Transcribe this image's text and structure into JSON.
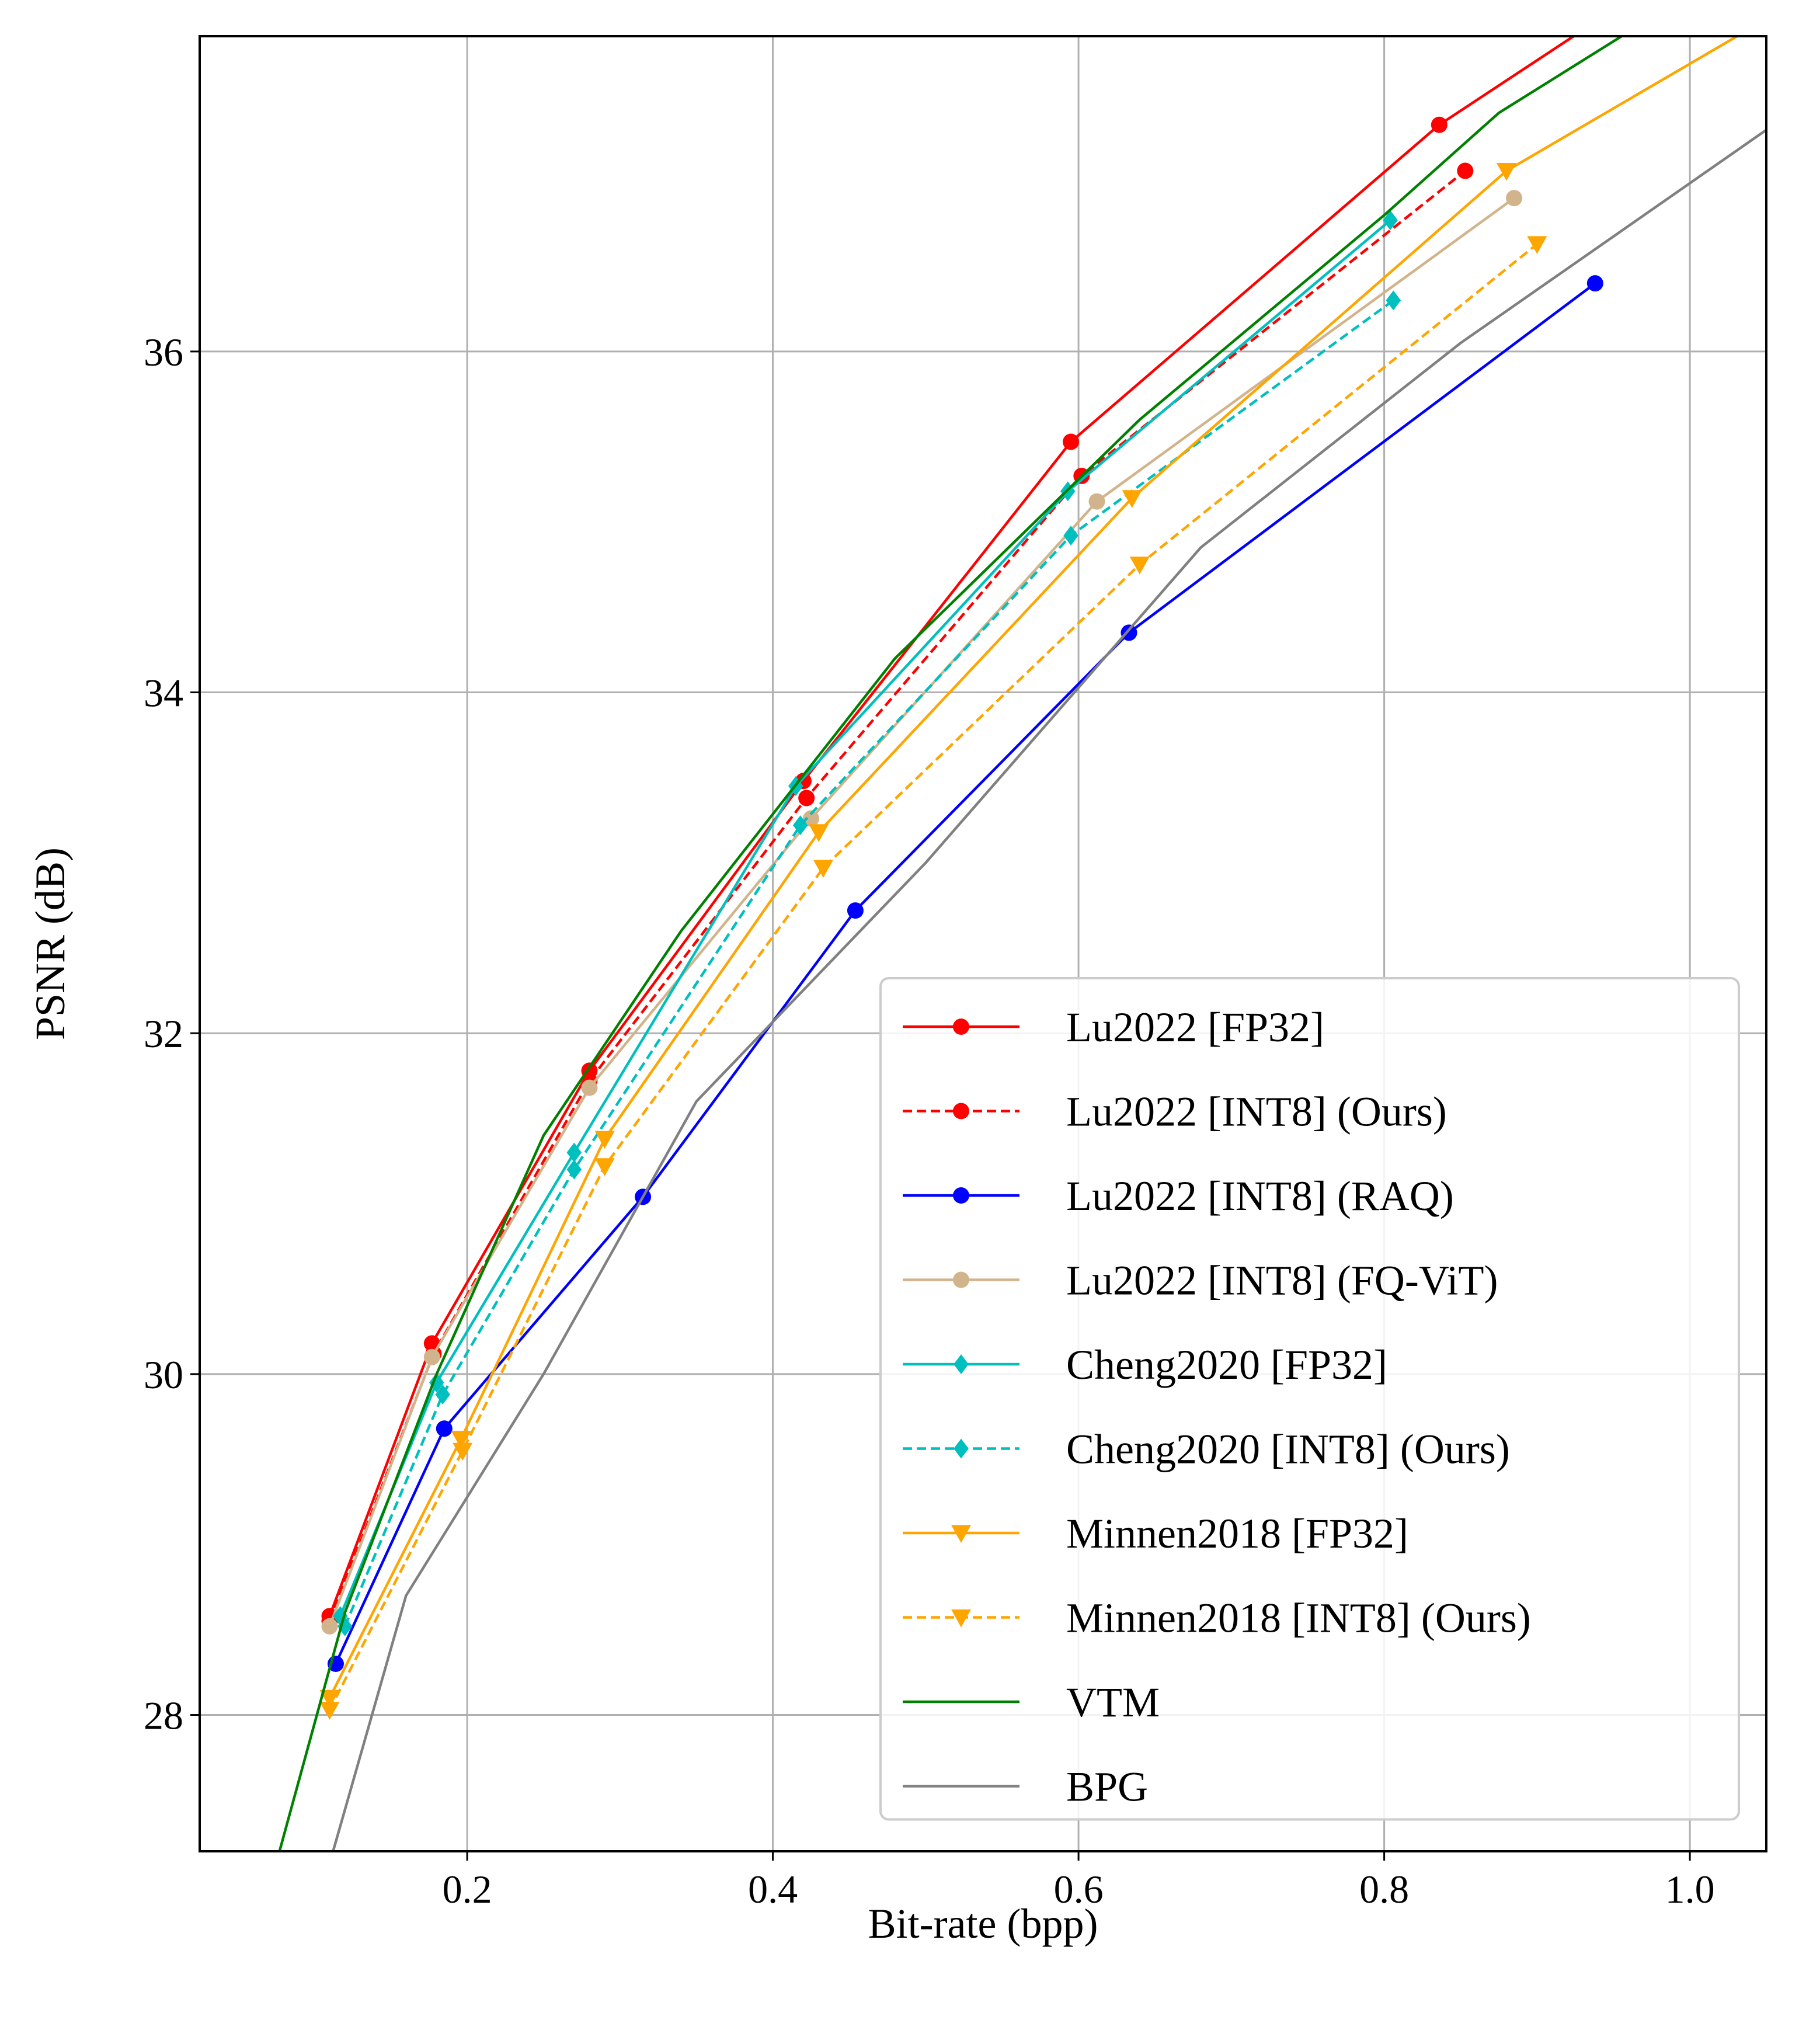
{
  "chart_data": {
    "type": "line",
    "title": "",
    "xlabel": "Bit-rate (bpp)",
    "ylabel": "PSNR (dB)",
    "xlim": [
      0.025,
      1.05
    ],
    "ylim": [
      27.2,
      37.85
    ],
    "xticks": [
      0.2,
      0.4,
      0.6,
      0.8,
      1.0
    ],
    "xtick_labels": [
      "0.2",
      "0.4",
      "0.6",
      "0.8",
      "1.0"
    ],
    "yticks": [
      28,
      30,
      32,
      34,
      36
    ],
    "ytick_labels": [
      "28",
      "30",
      "32",
      "34",
      "36"
    ],
    "grid": true,
    "legend_position": "lower right",
    "series": [
      {
        "name": "Lu2022 [FP32]",
        "color": "#ff0000",
        "dash": "solid",
        "marker": "circle",
        "x": [
          0.11,
          0.177,
          0.28,
          0.42,
          0.595,
          0.836,
          1.0
        ],
        "y": [
          28.58,
          30.18,
          31.78,
          33.48,
          35.47,
          37.33,
          38.3
        ]
      },
      {
        "name": "Lu2022 [INT8] (Ours)",
        "color": "#ff0000",
        "dash": "dashed",
        "marker": "circle",
        "x": [
          0.11,
          0.178,
          0.28,
          0.422,
          0.602,
          0.853
        ],
        "y": [
          28.55,
          30.12,
          31.72,
          33.38,
          35.27,
          37.06
        ]
      },
      {
        "name": "Lu2022 [INT8] (RAQ)",
        "color": "#0000ff",
        "dash": "solid",
        "marker": "circle",
        "x": [
          0.114,
          0.185,
          0.315,
          0.454,
          0.633,
          0.938
        ],
        "y": [
          28.3,
          29.68,
          31.04,
          32.72,
          34.35,
          36.4
        ]
      },
      {
        "name": "Lu2022 [INT8] (FQ-ViT)",
        "color": "#d2b48c",
        "dash": "solid",
        "marker": "circle",
        "x": [
          0.11,
          0.177,
          0.28,
          0.425,
          0.612,
          0.885
        ],
        "y": [
          28.52,
          30.1,
          31.68,
          33.26,
          35.12,
          36.9
        ]
      },
      {
        "name": "Cheng2020 [FP32]",
        "color": "#00bfbf",
        "dash": "solid",
        "marker": "diamond",
        "x": [
          0.117,
          0.18,
          0.27,
          0.415,
          0.593,
          0.804
        ],
        "y": [
          28.58,
          29.95,
          31.3,
          33.45,
          35.18,
          36.77
        ]
      },
      {
        "name": "Cheng2020 [INT8] (Ours)",
        "color": "#00bfbf",
        "dash": "dashed",
        "marker": "diamond",
        "x": [
          0.12,
          0.184,
          0.27,
          0.418,
          0.595,
          0.806
        ],
        "y": [
          28.52,
          29.88,
          31.2,
          33.22,
          34.92,
          36.3
        ]
      },
      {
        "name": "Minnen2018 [FP32]",
        "color": "#ffa500",
        "dash": "solid",
        "marker": "triangle-down",
        "x": [
          0.11,
          0.196,
          0.29,
          0.43,
          0.635,
          0.88,
          1.05
        ],
        "y": [
          28.1,
          29.62,
          31.38,
          33.18,
          35.14,
          37.06,
          37.95
        ]
      },
      {
        "name": "Minnen2018 [INT8] (Ours)",
        "color": "#ffa500",
        "dash": "dashed",
        "marker": "triangle-down",
        "x": [
          0.11,
          0.197,
          0.29,
          0.433,
          0.64,
          0.9
        ],
        "y": [
          28.03,
          29.55,
          31.22,
          32.97,
          34.75,
          36.63
        ]
      },
      {
        "name": "VTM",
        "color": "#008000",
        "dash": "solid",
        "marker": "none",
        "x": [
          0.065,
          0.12,
          0.18,
          0.25,
          0.34,
          0.48,
          0.64,
          0.8,
          0.875,
          1.0
        ],
        "y": [
          26.8,
          28.6,
          30.0,
          31.4,
          32.6,
          34.2,
          35.6,
          36.8,
          37.4,
          38.1
        ]
      },
      {
        "name": "BPG",
        "color": "#808080",
        "dash": "solid",
        "marker": "none",
        "x": [
          0.09,
          0.16,
          0.25,
          0.35,
          0.5,
          0.68,
          0.85,
          1.05
        ],
        "y": [
          26.5,
          28.7,
          30.0,
          31.6,
          33.0,
          34.85,
          36.05,
          37.3
        ]
      }
    ]
  }
}
